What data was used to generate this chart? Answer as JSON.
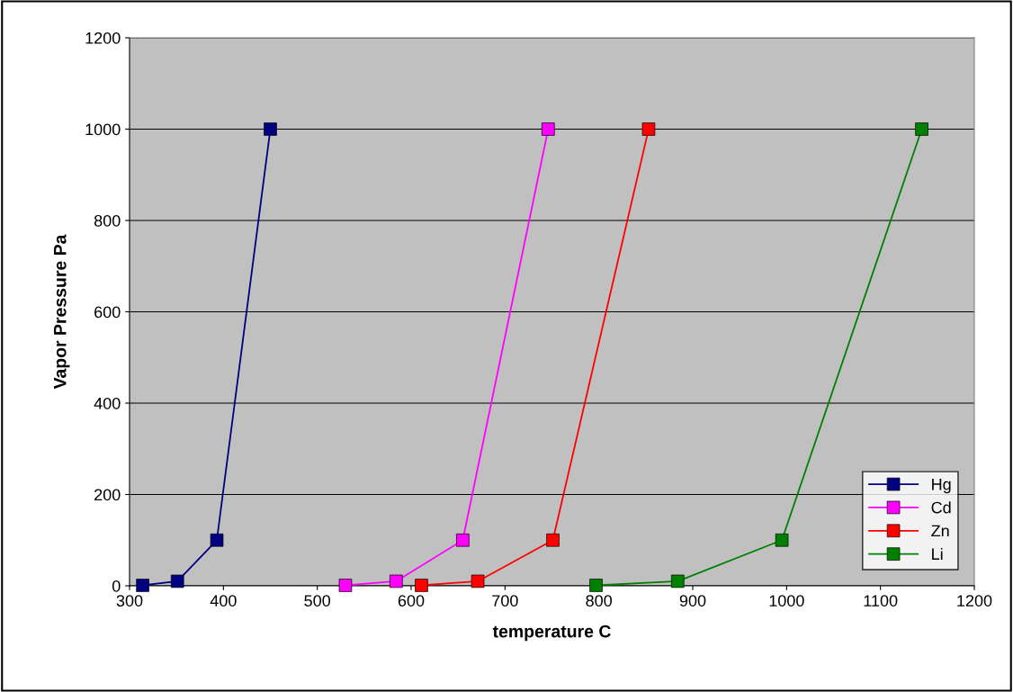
{
  "chart_data": {
    "type": "line",
    "xlabel": "temperature C",
    "ylabel": "Vapor Pressure Pa",
    "xlim": [
      300,
      1200
    ],
    "xticks": [
      300,
      400,
      500,
      600,
      700,
      800,
      900,
      1000,
      1100,
      1200
    ],
    "ylim": [
      0,
      1200
    ],
    "yticks": [
      0,
      200,
      400,
      600,
      800,
      1000,
      1200
    ],
    "grid": "y",
    "legend": "bottom right",
    "marker": "square",
    "line_style": "solid",
    "series": [
      {
        "name": "Hg",
        "color": "#000080",
        "x": [
          314,
          351,
          393,
          450
        ],
        "values": [
          1,
          10,
          100,
          1000
        ]
      },
      {
        "name": "Cd",
        "color": "#ff00ff",
        "x": [
          530,
          584,
          655,
          746
        ],
        "values": [
          1,
          10,
          100,
          1000
        ]
      },
      {
        "name": "Zn",
        "color": "#ff0000",
        "x": [
          611,
          671,
          751,
          853
        ],
        "values": [
          1,
          10,
          100,
          1000
        ]
      },
      {
        "name": "Li",
        "color": "#008000",
        "x": [
          797,
          884,
          995,
          1144
        ],
        "values": [
          1,
          10,
          100,
          1000
        ]
      }
    ]
  }
}
